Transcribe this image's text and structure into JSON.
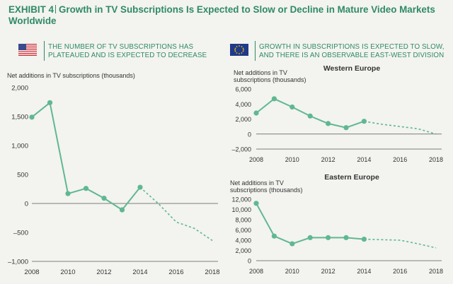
{
  "title": {
    "exhibit": "EXHIBIT 4",
    "text": "Growth in TV Subscriptions Is Expected to Slow or Decline in Mature Video Markets Worldwide"
  },
  "left_panel": {
    "flag": "us-flag-icon",
    "subhead_line1": "THE NUMBER OF TV SUBSCRIPTIONS HAS",
    "subhead_line2": "PLATEAUED AND IS EXPECTED TO DECREASE"
  },
  "right_panel": {
    "flag": "eu-flag-icon",
    "subhead_line1": "GROWTH IN SUBSCRIPTIONS IS EXPECTED TO SLOW,",
    "subhead_line2": "AND THERE IS AN OBSERVABLE EAST-WEST DIVISION"
  },
  "colors": {
    "accent": "#2f8a68",
    "series": "#5fb891",
    "axis": "#555555",
    "text": "#333333",
    "background": "#f3f3ef"
  },
  "chart_data": [
    {
      "id": "us",
      "type": "line",
      "title": "",
      "ylabel_lines": [
        "Net additions in TV subscriptions (thousands)"
      ],
      "x": [
        2008,
        2009,
        2010,
        2011,
        2012,
        2013,
        2014,
        2015,
        2016,
        2017,
        2018
      ],
      "actual": [
        [
          2008,
          1490
        ],
        [
          2009,
          1740
        ],
        [
          2010,
          170
        ],
        [
          2011,
          260
        ],
        [
          2012,
          90
        ],
        [
          2013,
          -110
        ],
        [
          2014,
          280
        ]
      ],
      "forecast": [
        [
          2014,
          280
        ],
        [
          2015,
          0
        ],
        [
          2016,
          -320
        ],
        [
          2017,
          -430
        ],
        [
          2018,
          -640
        ]
      ],
      "xticks": [
        2008,
        2010,
        2012,
        2014,
        2016,
        2018
      ],
      "xtick_labels": [
        "2008",
        "2010",
        "2012",
        "2014",
        "2016",
        "2018"
      ],
      "yticks": [
        -1000,
        -500,
        0,
        500,
        1000,
        1500,
        2000
      ],
      "ytick_labels": [
        "–1,000",
        "–500",
        "0",
        "500",
        "1,000",
        "1,500",
        "2,000"
      ],
      "xlim": [
        2008,
        2018
      ],
      "ylim": [
        -1000,
        2000
      ]
    },
    {
      "id": "western-europe",
      "type": "line",
      "title": "Western Europe",
      "ylabel_lines": [
        "Net additions in TV",
        "subscriptions (thousands)"
      ],
      "x": [
        2008,
        2009,
        2010,
        2011,
        2012,
        2013,
        2014,
        2015,
        2016,
        2017,
        2018
      ],
      "actual": [
        [
          2008,
          2800
        ],
        [
          2009,
          4700
        ],
        [
          2010,
          3600
        ],
        [
          2011,
          2400
        ],
        [
          2012,
          1400
        ],
        [
          2013,
          850
        ],
        [
          2014,
          1700
        ]
      ],
      "forecast": [
        [
          2014,
          1700
        ],
        [
          2015,
          1300
        ],
        [
          2016,
          1000
        ],
        [
          2017,
          700
        ],
        [
          2018,
          0
        ]
      ],
      "xticks": [
        2008,
        2010,
        2012,
        2014,
        2016,
        2018
      ],
      "xtick_labels": [
        "2008",
        "2010",
        "2012",
        "2014",
        "2016",
        "2018"
      ],
      "yticks": [
        -2000,
        0,
        2000,
        4000,
        6000
      ],
      "ytick_labels": [
        "–2,000",
        "0",
        "2,000",
        "4,000",
        "6,000"
      ],
      "xlim": [
        2008,
        2018
      ],
      "ylim": [
        -2000,
        6000
      ]
    },
    {
      "id": "eastern-europe",
      "type": "line",
      "title": "Eastern Europe",
      "ylabel_lines": [
        "Net additions in TV",
        "subscriptions (thousands)"
      ],
      "x": [
        2008,
        2009,
        2010,
        2011,
        2012,
        2013,
        2014,
        2015,
        2016,
        2017,
        2018
      ],
      "actual": [
        [
          2008,
          11200
        ],
        [
          2009,
          4800
        ],
        [
          2010,
          3300
        ],
        [
          2011,
          4500
        ],
        [
          2012,
          4500
        ],
        [
          2013,
          4500
        ],
        [
          2014,
          4200
        ]
      ],
      "forecast": [
        [
          2014,
          4200
        ],
        [
          2015,
          4100
        ],
        [
          2016,
          4000
        ],
        [
          2017,
          3300
        ],
        [
          2018,
          2500
        ]
      ],
      "xticks": [
        2008,
        2010,
        2012,
        2014,
        2016,
        2018
      ],
      "xtick_labels": [
        "2008",
        "2010",
        "2012",
        "2014",
        "2016",
        "2018"
      ],
      "yticks": [
        0,
        2000,
        4000,
        6000,
        8000,
        10000,
        12000
      ],
      "ytick_labels": [
        "0",
        "2,000",
        "4,000",
        "6,000",
        "8,000",
        "10,000",
        "12,000"
      ],
      "xlim": [
        2008,
        2018
      ],
      "ylim": [
        0,
        12000
      ]
    }
  ]
}
